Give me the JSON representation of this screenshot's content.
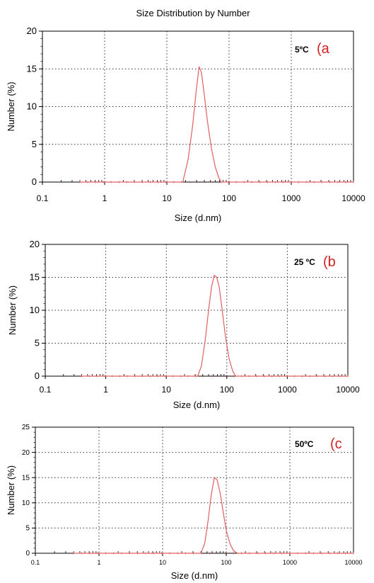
{
  "figure": {
    "title": "Size Distribution by Number"
  },
  "chart_data": [
    {
      "type": "line",
      "title": "Size Distribution by Number",
      "panel_label": "(a",
      "temperature_label": "5ºC",
      "xlabel": "Size (d.nm)",
      "ylabel": "Number (%)",
      "x_scale": "log",
      "xlim": [
        0.1,
        10000
      ],
      "ylim": [
        0,
        20
      ],
      "x_ticks": [
        "0.1",
        "1",
        "10",
        "100",
        "1000",
        "10000"
      ],
      "y_ticks": [
        "0",
        "5",
        "10",
        "15",
        "20"
      ],
      "grid": "dotted",
      "line_color": "#e06060",
      "series": [
        {
          "x": [
            0.4,
            18,
            22,
            26,
            30,
            33,
            36,
            40,
            45,
            52,
            60,
            68,
            75,
            10000
          ],
          "y": [
            0,
            0,
            3.0,
            7.5,
            12.5,
            15.3,
            14.5,
            11.5,
            8.0,
            4.5,
            2.0,
            0.6,
            0,
            0
          ]
        }
      ]
    },
    {
      "type": "line",
      "panel_label": "(b",
      "temperature_label": "25 ºC",
      "xlabel": "Size (d.nm)",
      "ylabel": "Number (%)",
      "x_scale": "log",
      "xlim": [
        0.1,
        10000
      ],
      "ylim": [
        0,
        20
      ],
      "x_ticks": [
        "0.1",
        "1",
        "10",
        "100",
        "1000",
        "10000"
      ],
      "y_ticks": [
        "0",
        "5",
        "10",
        "15",
        "20"
      ],
      "grid": "dotted",
      "line_color": "#e06060",
      "series": [
        {
          "x": [
            0.4,
            33,
            38,
            44,
            50,
            56,
            62,
            68,
            75,
            84,
            95,
            110,
            125,
            140,
            10000
          ],
          "y": [
            0,
            0,
            1.5,
            5.5,
            10.0,
            13.5,
            15.3,
            15.0,
            13.5,
            10.0,
            6.0,
            2.5,
            0.8,
            0,
            0
          ]
        }
      ]
    },
    {
      "type": "line",
      "panel_label": "(c",
      "temperature_label": "50ºC",
      "xlabel": "Size (d.nm)",
      "ylabel": "Number (%)",
      "x_scale": "log",
      "xlim": [
        0.1,
        10000
      ],
      "ylim": [
        0,
        25
      ],
      "x_ticks": [
        "0.1",
        "1",
        "10",
        "100",
        "1000",
        "10000"
      ],
      "y_ticks": [
        "0",
        "5",
        "10",
        "15",
        "20",
        "25"
      ],
      "grid": "dotted",
      "line_color": "#e06060",
      "series": [
        {
          "x": [
            0.4,
            40,
            46,
            52,
            58,
            65,
            72,
            80,
            90,
            100,
            115,
            130,
            150,
            10000
          ],
          "y": [
            0,
            0,
            2.0,
            6.5,
            11.5,
            15.0,
            14.5,
            12.0,
            8.0,
            4.5,
            1.8,
            0.5,
            0,
            0
          ]
        }
      ]
    }
  ]
}
